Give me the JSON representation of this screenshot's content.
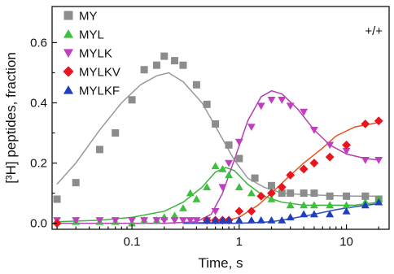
{
  "chart_data": {
    "type": "scatter",
    "title": "",
    "annotation": "+/+",
    "xlabel": "Time, s",
    "ylabel": "[³H] peptides, fraction",
    "xscale": "log",
    "xlim": [
      0.018,
      25
    ],
    "ylim": [
      -0.02,
      0.72
    ],
    "xticks": [
      {
        "value": 0.1,
        "label": "0.1"
      },
      {
        "value": 1,
        "label": "1"
      },
      {
        "value": 10,
        "label": "10"
      }
    ],
    "yticks": [
      {
        "value": 0.0,
        "label": "0.0"
      },
      {
        "value": 0.2,
        "label": "0.2"
      },
      {
        "value": 0.4,
        "label": "0.4"
      },
      {
        "value": 0.6,
        "label": "0.6"
      }
    ],
    "legend_position": "top-left",
    "series": [
      {
        "name": "MY",
        "marker": "square",
        "color": "#8c8c8c",
        "line_color": "#999999",
        "points": [
          [
            0.02,
            0.08
          ],
          [
            0.03,
            0.135
          ],
          [
            0.05,
            0.245
          ],
          [
            0.07,
            0.3
          ],
          [
            0.1,
            0.41
          ],
          [
            0.13,
            0.51
          ],
          [
            0.17,
            0.525
          ],
          [
            0.2,
            0.555
          ],
          [
            0.25,
            0.54
          ],
          [
            0.3,
            0.525
          ],
          [
            0.4,
            0.46
          ],
          [
            0.5,
            0.395
          ],
          [
            0.6,
            0.33
          ],
          [
            0.8,
            0.26
          ],
          [
            1.0,
            0.215
          ],
          [
            1.4,
            0.15
          ],
          [
            2,
            0.125
          ],
          [
            2.5,
            0.1
          ],
          [
            3,
            0.1
          ],
          [
            4,
            0.1
          ],
          [
            5,
            0.1
          ],
          [
            7,
            0.09
          ],
          [
            10,
            0.09
          ],
          [
            15,
            0.09
          ],
          [
            20,
            0.08
          ]
        ],
        "curve": [
          [
            0.02,
            0.13
          ],
          [
            0.03,
            0.2
          ],
          [
            0.05,
            0.31
          ],
          [
            0.08,
            0.4
          ],
          [
            0.12,
            0.46
          ],
          [
            0.17,
            0.49
          ],
          [
            0.22,
            0.5
          ],
          [
            0.3,
            0.47
          ],
          [
            0.45,
            0.4
          ],
          [
            0.65,
            0.3
          ],
          [
            0.9,
            0.21
          ],
          [
            1.2,
            0.15
          ],
          [
            1.7,
            0.12
          ],
          [
            2.5,
            0.1
          ],
          [
            4,
            0.095
          ],
          [
            7,
            0.092
          ],
          [
            12,
            0.09
          ],
          [
            20,
            0.09
          ]
        ]
      },
      {
        "name": "MYL",
        "marker": "triangle-up",
        "color": "#3fbf3f",
        "line_color": "#3cb43c",
        "points": [
          [
            0.02,
            0.005
          ],
          [
            0.03,
            0.005
          ],
          [
            0.05,
            0.005
          ],
          [
            0.07,
            0.005
          ],
          [
            0.1,
            0.0
          ],
          [
            0.13,
            0.01
          ],
          [
            0.17,
            0.01
          ],
          [
            0.2,
            0.02
          ],
          [
            0.25,
            0.025
          ],
          [
            0.3,
            0.05
          ],
          [
            0.35,
            0.1
          ],
          [
            0.4,
            0.08
          ],
          [
            0.5,
            0.12
          ],
          [
            0.6,
            0.19
          ],
          [
            0.7,
            0.18
          ],
          [
            0.8,
            0.16
          ],
          [
            1.0,
            0.12
          ],
          [
            1.3,
            0.1
          ],
          [
            2,
            0.08
          ],
          [
            3,
            0.06
          ],
          [
            4,
            0.06
          ],
          [
            5,
            0.06
          ],
          [
            7,
            0.06
          ],
          [
            10,
            0.06
          ],
          [
            15,
            0.07
          ],
          [
            20,
            0.08
          ]
        ],
        "curve": [
          [
            0.02,
            0.005
          ],
          [
            0.05,
            0.01
          ],
          [
            0.1,
            0.02
          ],
          [
            0.2,
            0.04
          ],
          [
            0.3,
            0.07
          ],
          [
            0.45,
            0.12
          ],
          [
            0.6,
            0.17
          ],
          [
            0.75,
            0.185
          ],
          [
            0.9,
            0.175
          ],
          [
            1.2,
            0.13
          ],
          [
            1.7,
            0.09
          ],
          [
            2.5,
            0.07
          ],
          [
            4,
            0.06
          ],
          [
            7,
            0.06
          ],
          [
            12,
            0.06
          ],
          [
            20,
            0.07
          ]
        ]
      },
      {
        "name": "MYLK",
        "marker": "triangle-down",
        "color": "#c13fbf",
        "line_color": "#b340b3",
        "points": [
          [
            0.02,
            0.01
          ],
          [
            0.03,
            0.01
          ],
          [
            0.05,
            0.01
          ],
          [
            0.07,
            0.01
          ],
          [
            0.1,
            0.01
          ],
          [
            0.13,
            0.01
          ],
          [
            0.17,
            0.01
          ],
          [
            0.2,
            0.01
          ],
          [
            0.25,
            0.01
          ],
          [
            0.3,
            0.01
          ],
          [
            0.35,
            0.01
          ],
          [
            0.4,
            0.01
          ],
          [
            0.5,
            0.01
          ],
          [
            0.6,
            0.04
          ],
          [
            0.7,
            0.12
          ],
          [
            0.8,
            0.2
          ],
          [
            1.0,
            0.27
          ],
          [
            1.3,
            0.32
          ],
          [
            1.6,
            0.39
          ],
          [
            2,
            0.41
          ],
          [
            2.5,
            0.41
          ],
          [
            3,
            0.39
          ],
          [
            4,
            0.37
          ],
          [
            5,
            0.31
          ],
          [
            7,
            0.26
          ],
          [
            10,
            0.24
          ],
          [
            15,
            0.21
          ],
          [
            20,
            0.21
          ]
        ],
        "curve": [
          [
            0.02,
            0.0
          ],
          [
            0.2,
            0.0
          ],
          [
            0.4,
            0.005
          ],
          [
            0.55,
            0.03
          ],
          [
            0.7,
            0.1
          ],
          [
            0.9,
            0.21
          ],
          [
            1.2,
            0.34
          ],
          [
            1.6,
            0.42
          ],
          [
            2,
            0.44
          ],
          [
            2.5,
            0.43
          ],
          [
            3.5,
            0.38
          ],
          [
            5,
            0.31
          ],
          [
            7,
            0.26
          ],
          [
            10,
            0.23
          ],
          [
            15,
            0.215
          ],
          [
            20,
            0.21
          ]
        ]
      },
      {
        "name": "MYLKV",
        "marker": "diamond",
        "color": "#e8141e",
        "line_color": "#e8531e",
        "points": [
          [
            0.02,
            0.0
          ],
          [
            0.5,
            0.01
          ],
          [
            0.6,
            0.01
          ],
          [
            0.7,
            0.01
          ],
          [
            0.8,
            0.01
          ],
          [
            1.0,
            0.04
          ],
          [
            1.3,
            0.04
          ],
          [
            1.6,
            0.09
          ],
          [
            2,
            0.1
          ],
          [
            2.5,
            0.12
          ],
          [
            3,
            0.16
          ],
          [
            4,
            0.18
          ],
          [
            5,
            0.2
          ],
          [
            7,
            0.22
          ],
          [
            10,
            0.26
          ],
          [
            15,
            0.33
          ],
          [
            20,
            0.34
          ]
        ],
        "curve": [
          [
            0.3,
            0.0
          ],
          [
            0.7,
            0.005
          ],
          [
            1.0,
            0.02
          ],
          [
            1.5,
            0.06
          ],
          [
            2,
            0.1
          ],
          [
            3,
            0.16
          ],
          [
            4,
            0.2
          ],
          [
            6,
            0.25
          ],
          [
            8,
            0.29
          ],
          [
            12,
            0.32
          ],
          [
            20,
            0.335
          ]
        ]
      },
      {
        "name": "MYLKF",
        "marker": "triangle-up",
        "color": "#1f3fbf",
        "line_color": "#2a4ebf",
        "points": [
          [
            0.5,
            0.01
          ],
          [
            0.6,
            0.01
          ],
          [
            0.7,
            0.01
          ],
          [
            0.8,
            0.01
          ],
          [
            1.0,
            0.01
          ],
          [
            1.3,
            0.01
          ],
          [
            1.6,
            0.01
          ],
          [
            2,
            0.01
          ],
          [
            2.5,
            0.01
          ],
          [
            3,
            0.02
          ],
          [
            4,
            0.03
          ],
          [
            5,
            0.03
          ],
          [
            7,
            0.03
          ],
          [
            10,
            0.04
          ],
          [
            15,
            0.06
          ],
          [
            20,
            0.07
          ]
        ],
        "curve": [
          [
            0.3,
            0.0
          ],
          [
            1.0,
            0.0
          ],
          [
            2,
            0.005
          ],
          [
            3,
            0.015
          ],
          [
            5,
            0.03
          ],
          [
            8,
            0.045
          ],
          [
            12,
            0.055
          ],
          [
            20,
            0.065
          ]
        ]
      }
    ]
  }
}
